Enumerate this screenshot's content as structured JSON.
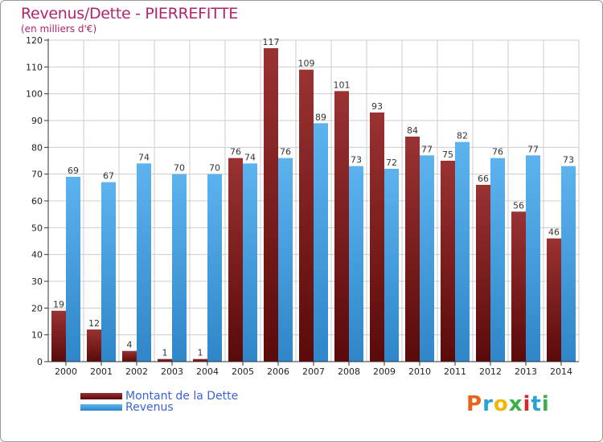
{
  "title": "Revenus/Dette - PIERREFITTE",
  "subtitle": "(en milliers d'€)",
  "logo": {
    "text": "Proxiti",
    "colors": [
      "#e8641b",
      "#29a3d6",
      "#f2b705",
      "#3fae49",
      "#d6262f",
      "#29a3d6",
      "#3fae49"
    ]
  },
  "colors": {
    "title": "#b0256e",
    "dette": "#7a1414",
    "revenus": "#3f9ee0",
    "legend_text": "#3a63d6",
    "grid": "#cccccc"
  },
  "chart_data": {
    "type": "bar",
    "title": "Revenus/Dette - PIERREFITTE",
    "subtitle": "(en milliers d'€)",
    "categories": [
      "2000",
      "2001",
      "2002",
      "2003",
      "2004",
      "2005",
      "2006",
      "2007",
      "2008",
      "2009",
      "2010",
      "2011",
      "2012",
      "2013",
      "2014"
    ],
    "series": [
      {
        "name": "Montant de la Dette",
        "color": "#7a1414",
        "values": [
          19,
          12,
          4,
          1,
          1,
          76,
          117,
          109,
          101,
          93,
          84,
          75,
          66,
          56,
          46
        ]
      },
      {
        "name": "Revenus",
        "color": "#3f9ee0",
        "values": [
          69,
          67,
          74,
          70,
          70,
          74,
          76,
          89,
          73,
          72,
          77,
          82,
          76,
          77,
          73
        ]
      }
    ],
    "ylim": [
      0,
      120
    ],
    "yticks": [
      0,
      10,
      20,
      30,
      40,
      50,
      60,
      70,
      80,
      90,
      100,
      110,
      120
    ],
    "grid": true,
    "legend": "bottom-left"
  }
}
